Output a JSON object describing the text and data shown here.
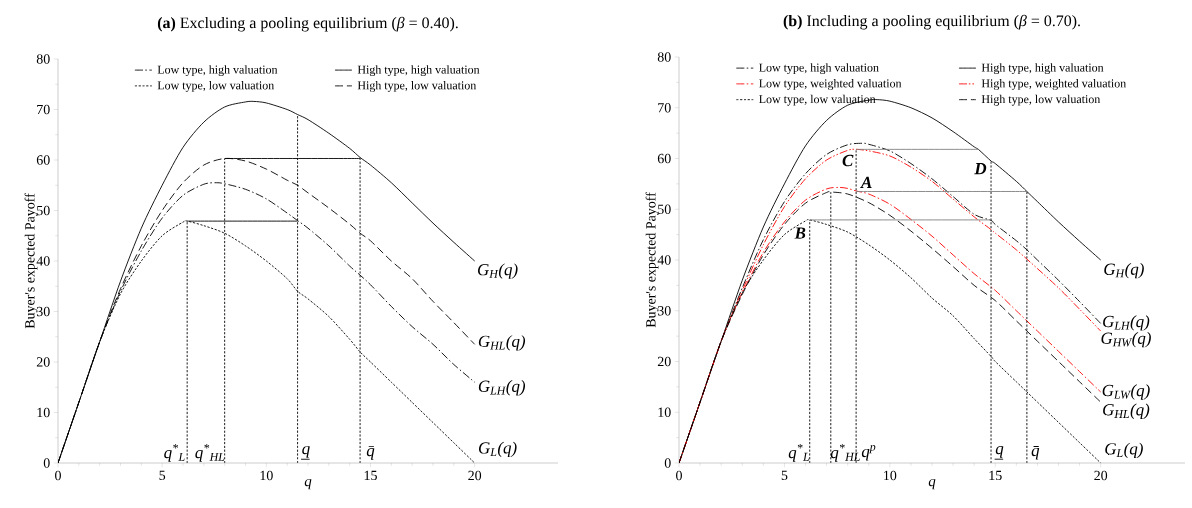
{
  "chart_data": [
    {
      "type": "line",
      "title": "**(a)** Excluding a pooling equilibrium (*β* = 0.40).",
      "xlabel": "q",
      "ylabel": "Buyer's expected Payoff",
      "xlim": [
        0,
        24
      ],
      "ylim": [
        0,
        80
      ],
      "xticks": [
        0,
        5,
        10,
        15,
        20
      ],
      "yticks": [
        0,
        10,
        20,
        30,
        40,
        50,
        60,
        70,
        80
      ],
      "legend": "top",
      "series": [
        {
          "name": "Low type, high valuation",
          "color": "#000000",
          "line_style": "dashdot",
          "x": [
            0,
            1,
            2,
            3,
            4,
            5,
            6,
            7,
            7.6,
            8,
            9,
            10,
            11,
            11.5,
            12,
            13,
            14,
            14.5,
            15,
            16,
            17,
            18,
            19,
            20
          ],
          "values": [
            0,
            12,
            24,
            34,
            42,
            48.5,
            53,
            55.2,
            55.5,
            55.3,
            54.2,
            52.3,
            49.5,
            48,
            46.5,
            43,
            39,
            37.2,
            35.3,
            31,
            27,
            23.5,
            19.5,
            16
          ]
        },
        {
          "name": "High type, high valuation",
          "color": "#000000",
          "line_style": "solid",
          "x": [
            0,
            1,
            2,
            3,
            4,
            5,
            6,
            7,
            8,
            9,
            9.4,
            10,
            11,
            11.5,
            12,
            13,
            14,
            14.5,
            15,
            16,
            17,
            18,
            19,
            20
          ],
          "values": [
            0,
            12,
            24,
            36,
            46.5,
            55,
            62.5,
            67.5,
            70.5,
            71.5,
            71.6,
            71.3,
            70,
            69,
            68,
            65.3,
            62.3,
            60.5,
            59,
            55.5,
            51.5,
            47.5,
            43.7,
            40
          ]
        },
        {
          "name": "Low type, low valuation",
          "color": "#000000",
          "line_style": "dotted",
          "x": [
            0,
            1,
            2,
            3,
            4,
            5,
            6,
            6.2,
            7,
            8,
            9,
            10,
            11,
            11.5,
            12,
            13,
            14,
            14.5,
            15,
            16,
            17,
            18,
            19,
            20
          ],
          "values": [
            0,
            12,
            24,
            33.5,
            40,
            45,
            47.7,
            47.9,
            47,
            45.5,
            43,
            40,
            36.5,
            34,
            32.5,
            29,
            24.5,
            22,
            20,
            16,
            12,
            8,
            4,
            0
          ]
        },
        {
          "name": "High type, low valuation",
          "color": "#000000",
          "line_style": "dashed",
          "x": [
            0,
            1,
            2,
            3,
            4,
            5,
            6,
            7,
            8,
            9,
            10,
            11,
            11.5,
            12,
            13,
            14,
            14.5,
            15,
            16,
            17,
            18,
            19,
            20
          ],
          "values": [
            0,
            12,
            24,
            34.5,
            43,
            50,
            55.5,
            59,
            60.3,
            59.8,
            58.2,
            56,
            55,
            53.5,
            50.5,
            47.3,
            45.5,
            44,
            40,
            36.5,
            32,
            27.8,
            23.5
          ]
        },
        {
          "color": "#000000",
          "line_style": "dotted",
          "x": [
            6.2,
            6.2
          ],
          "values": [
            0,
            47.9
          ]
        },
        {
          "color": "#000000",
          "line_style": "dotted",
          "x": [
            8,
            8
          ],
          "values": [
            0,
            60.3
          ]
        },
        {
          "color": "#000000",
          "line_style": "dotted",
          "x": [
            11.5,
            11.5
          ],
          "values": [
            0,
            69
          ]
        },
        {
          "color": "#000000",
          "line_style": "dotted",
          "x": [
            14.5,
            14.5
          ],
          "values": [
            0,
            60.5
          ]
        },
        {
          "color": "#000000",
          "line_style": "solid",
          "x": [
            8,
            14.5
          ],
          "values": [
            60.3,
            60.3
          ]
        },
        {
          "color": "#000000",
          "line_style": "solid",
          "x": [
            6.2,
            11.5
          ],
          "values": [
            47.9,
            47.9
          ]
        }
      ],
      "annotations": [
        "q$^{*}$$_{L}$",
        "q$^{*}$$_{HL}$",
        "q̲",
        "q̄",
        "G$_{H}$(q)",
        "G$_{HL}$(q)",
        "G$_{LH}$(q)",
        "G$_{L}$(q)"
      ]
    },
    {
      "type": "line",
      "title": "**(b)** Including a pooling equilibrium (*β* = 0.70).",
      "xlabel": "q",
      "ylabel": "Buyer's expected Payoff",
      "xlim": [
        0,
        24
      ],
      "ylim": [
        0,
        80
      ],
      "xticks": [
        0,
        5,
        10,
        15,
        20
      ],
      "yticks": [
        0,
        10,
        20,
        30,
        40,
        50,
        60,
        70,
        80
      ],
      "legend": "top",
      "series": [
        {
          "name": "Low type, high valuation",
          "color": "#000000",
          "line_style": "dashdot",
          "x": [
            0,
            1,
            2,
            3,
            4,
            5,
            6,
            7,
            8,
            8.7,
            9,
            10,
            11,
            12,
            13,
            14,
            14.8,
            15,
            16,
            16.5,
            17,
            18,
            19,
            20
          ],
          "values": [
            0,
            12,
            24,
            34.5,
            44,
            51.5,
            57,
            60.8,
            62.7,
            63,
            62.8,
            61.5,
            59,
            56,
            52.5,
            49,
            47.8,
            47,
            43.8,
            42,
            40,
            36,
            31.8,
            27.5
          ]
        },
        {
          "name": "High type, high valuation",
          "color": "#000000",
          "line_style": "solid",
          "x": [
            0,
            1,
            2,
            3,
            4,
            5,
            6,
            7,
            8,
            9,
            9.4,
            10,
            11,
            12,
            13,
            14,
            14.2,
            14.8,
            15,
            16,
            16.5,
            17,
            18,
            19,
            20
          ],
          "values": [
            0,
            12,
            24,
            36,
            46.5,
            55,
            62.5,
            67.5,
            70.5,
            71.5,
            71.6,
            71.3,
            70,
            68,
            65.3,
            62.3,
            61.8,
            59.5,
            59,
            55.5,
            53.5,
            51.5,
            47.5,
            43.7,
            40
          ]
        },
        {
          "name": "Low type, weighted valuation",
          "color": "#ff0000",
          "line_style": "dashdot",
          "x": [
            0,
            1,
            2,
            3,
            4,
            5,
            6,
            7,
            7.6,
            8,
            8.4,
            9,
            10,
            11,
            12,
            13,
            14,
            15,
            16,
            17,
            18,
            19,
            20
          ],
          "values": [
            0,
            12,
            24,
            33.5,
            41.5,
            47.5,
            51.8,
            54,
            54.3,
            54.1,
            53.6,
            53,
            51,
            48,
            44.7,
            41,
            37.3,
            34,
            30,
            26,
            22,
            18,
            14
          ]
        },
        {
          "name": "High type, weighted valuation",
          "color": "#ff0000",
          "line_style": "dashdotdot",
          "x": [
            0,
            1,
            2,
            3,
            4,
            5,
            6,
            7,
            8,
            8.4,
            9,
            10,
            11,
            12,
            13,
            14,
            14.8,
            15,
            16,
            17,
            18,
            19,
            20
          ],
          "values": [
            0,
            12,
            24,
            34,
            43,
            50.5,
            56,
            59.7,
            61.6,
            61.8,
            61.5,
            60.5,
            58.3,
            55.5,
            52,
            48.5,
            46,
            45.3,
            42,
            38.3,
            34.5,
            30.3,
            26
          ]
        },
        {
          "name": "Low type, low valuation",
          "color": "#000000",
          "line_style": "dotted",
          "x": [
            0,
            1,
            2,
            3,
            4,
            5,
            6,
            6.2,
            7,
            8,
            9,
            10,
            11,
            12,
            13,
            14,
            14.8,
            15,
            16,
            16.5,
            17,
            18,
            19,
            20
          ],
          "values": [
            0,
            12,
            24,
            33.5,
            40,
            45,
            47.7,
            47.9,
            47,
            45.5,
            43,
            40,
            36.5,
            32.5,
            29,
            24.5,
            21,
            20,
            16,
            14,
            12,
            8,
            4,
            0
          ]
        },
        {
          "name": "High type, low valuation",
          "color": "#000000",
          "line_style": "dashed",
          "x": [
            0,
            1,
            2,
            3,
            4,
            5,
            6,
            7,
            7.2,
            8,
            9,
            10,
            11,
            12,
            13,
            14,
            15,
            16,
            17,
            18,
            19,
            20
          ],
          "values": [
            0,
            12,
            24,
            33.2,
            41,
            47,
            51.2,
            53.3,
            53.4,
            53,
            51.3,
            48.8,
            45.7,
            42.3,
            38.7,
            35,
            32,
            28,
            24,
            20,
            16,
            12
          ]
        },
        {
          "color": "#000000",
          "line_style": "dotted",
          "x": [
            6.2,
            6.2
          ],
          "values": [
            0,
            47.9
          ]
        },
        {
          "color": "#000000",
          "line_style": "dotted",
          "x": [
            7.2,
            7.2
          ],
          "values": [
            0,
            53.4
          ]
        },
        {
          "color": "#000000",
          "line_style": "dotted",
          "x": [
            8.4,
            8.4
          ],
          "values": [
            0,
            61.8
          ]
        },
        {
          "color": "#000000",
          "line_style": "dotted",
          "x": [
            14.8,
            14.8
          ],
          "values": [
            0,
            59.5
          ]
        },
        {
          "color": "#000000",
          "line_style": "dotted",
          "x": [
            16.5,
            16.5
          ],
          "values": [
            0,
            53.5
          ]
        },
        {
          "color": "#808080",
          "line_style": "solid",
          "x": [
            8.4,
            14.2
          ],
          "values": [
            61.8,
            61.8
          ]
        },
        {
          "color": "#808080",
          "line_style": "solid",
          "x": [
            8.4,
            16.5
          ],
          "values": [
            53.5,
            53.5
          ]
        },
        {
          "color": "#808080",
          "line_style": "solid",
          "x": [
            6.2,
            14.8
          ],
          "values": [
            47.9,
            47.9
          ]
        }
      ],
      "annotations": [
        "q$^{*}$$_{L}$",
        "q$^{*}$$_{HL}$",
        "q$^{p}$",
        "q̲",
        "q̄",
        "G$_{H}$(q)",
        "G$_{LH}$(q)",
        "G$_{HW}$(q)",
        "G$_{LW}$(q)",
        "G$_{HL}$(q)",
        "G$_{L}$(q)",
        "**B**",
        "**C**",
        "**A**",
        "**D**"
      ]
    }
  ]
}
